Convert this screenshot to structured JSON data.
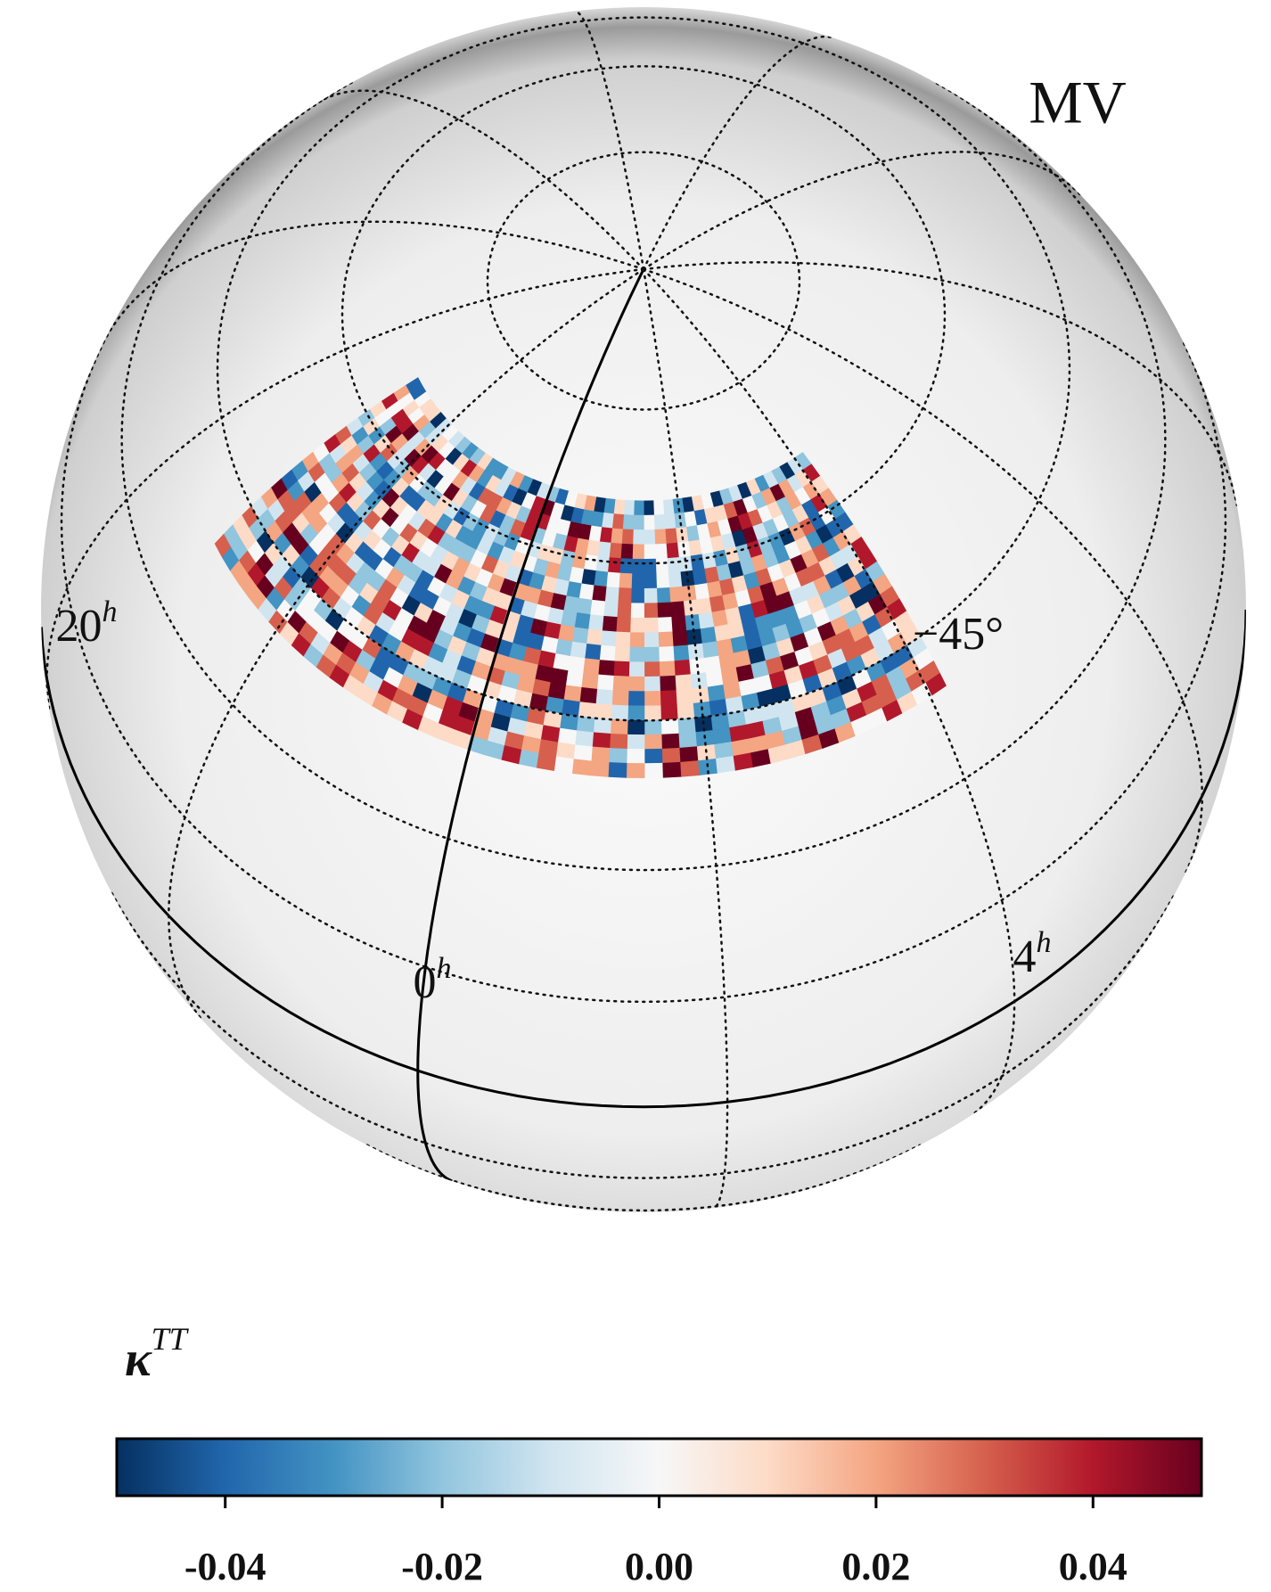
{
  "chart_data": {
    "type": "heatmap",
    "title": "MV",
    "ra_labels": [
      "20",
      "0",
      "4"
    ],
    "ra_unit": "h",
    "dec_label": "−45°",
    "colorbar_label": "κ",
    "colorbar_label_sup": "TT",
    "clim": [
      -0.05,
      0.05
    ],
    "cticks": [
      -0.04,
      -0.02,
      {
        "value": 0,
        "label": "0.00"
      },
      0.02,
      0.04
    ],
    "cmap": [
      "#053061",
      "#2166ac",
      "#4393c3",
      "#92c5de",
      "#d1e5f0",
      "#f7f7f7",
      "#fddbc7",
      "#f4a582",
      "#d6604d",
      "#b2182b",
      "#67001f"
    ]
  }
}
